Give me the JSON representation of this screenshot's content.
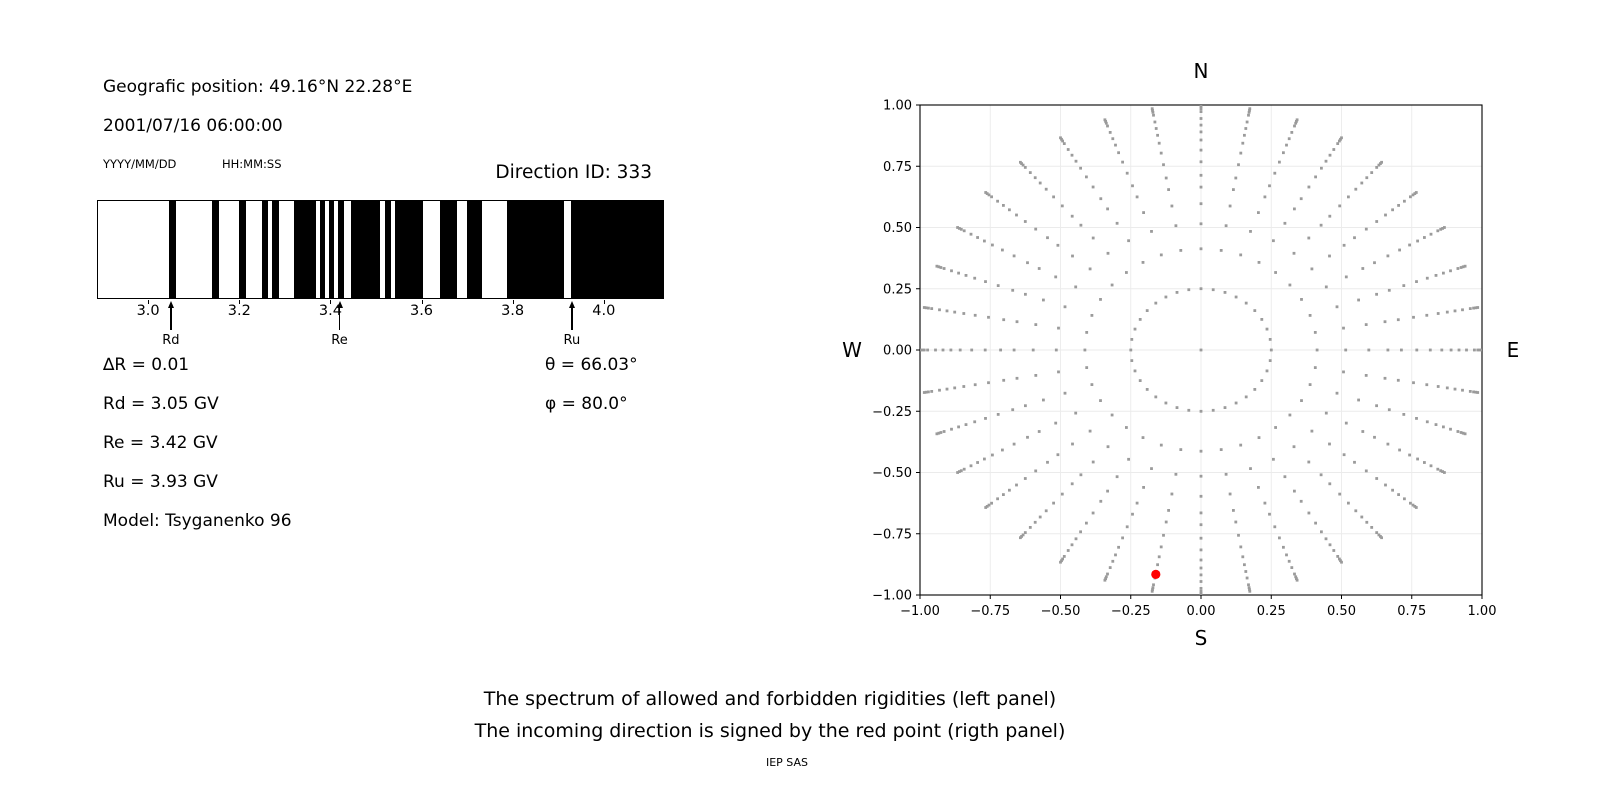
{
  "header": {
    "geographic_position": "Geografic position: 49.16°N 22.28°E",
    "datetime": "2001/07/16 06:00:00",
    "date_format_label": "YYYY/MM/DD",
    "time_format_label": "HH:MM:SS",
    "direction_id_label": "Direction ID: 333"
  },
  "parameters": {
    "delta_r": "∆R = 0.01",
    "rd": "Rd = 3.05 GV",
    "re": "Re = 3.42 GV",
    "ru": "Ru = 3.93 GV",
    "model": "Model: Tsyganenko 96",
    "theta": "θ = 66.03°",
    "phi": "φ = 80.0°"
  },
  "caption": {
    "line1": "The spectrum of allowed and forbidden rigidities (left panel)",
    "line2": "The incoming direction is signed by the red point (rigth panel)",
    "credit": "IEP SAS"
  },
  "chart_data": [
    {
      "type": "bar",
      "subtype": "rigidity-spectrum-bands",
      "description": "Allowed (black) and forbidden (white) rigidity bands, rigidity in GV",
      "xlim": [
        2.89,
        4.13
      ],
      "x_ticks": [
        3.0,
        3.2,
        3.4,
        3.6,
        3.8,
        4.0
      ],
      "x_tick_labels": [
        "3.0",
        "3.2",
        "3.4",
        "3.6",
        "3.8",
        "4.0"
      ],
      "allowed_bands_gv": [
        [
          3.046,
          3.062
        ],
        [
          3.14,
          3.156
        ],
        [
          3.2,
          3.214
        ],
        [
          3.25,
          3.264
        ],
        [
          3.271,
          3.287
        ],
        [
          3.32,
          3.368
        ],
        [
          3.377,
          3.388
        ],
        [
          3.396,
          3.409
        ],
        [
          3.417,
          3.429
        ],
        [
          3.446,
          3.51
        ],
        [
          3.52,
          3.533
        ],
        [
          3.542,
          3.603
        ],
        [
          3.64,
          3.679
        ],
        [
          3.699,
          3.734
        ],
        [
          3.788,
          3.913
        ],
        [
          3.929,
          4.13
        ]
      ],
      "markers": [
        {
          "label": "Rd",
          "value_gv": 3.05
        },
        {
          "label": "Re",
          "value_gv": 3.42
        },
        {
          "label": "Ru",
          "value_gv": 3.93
        }
      ],
      "band_color": "#000000",
      "background_color": "#ffffff"
    },
    {
      "type": "scatter",
      "subtype": "incoming-direction-map",
      "description": "Direction plot: 36 radial spokes of gray dots every 10 degrees, radii from inner ring 0.25 out to 1.0 with dots converging at the tips; red dot marks the incoming direction",
      "compass_labels": {
        "top": "N",
        "bottom": "S",
        "left": "W",
        "right": "E"
      },
      "xlim": [
        -1.0,
        1.0
      ],
      "ylim": [
        -1.0,
        1.0
      ],
      "ticks": [
        -1.0,
        -0.75,
        -0.5,
        -0.25,
        0.0,
        0.25,
        0.5,
        0.75,
        1.0
      ],
      "tick_labels": [
        "−1.00",
        "−0.75",
        "−0.50",
        "−0.25",
        "0.00",
        "0.25",
        "0.50",
        "0.75",
        "1.00"
      ],
      "grid": true,
      "spoke_azimuths_deg": [
        0,
        10,
        20,
        30,
        40,
        50,
        60,
        70,
        80,
        90,
        100,
        110,
        120,
        130,
        140,
        150,
        160,
        170,
        180,
        190,
        200,
        210,
        220,
        230,
        240,
        250,
        260,
        270,
        280,
        290,
        300,
        310,
        320,
        330,
        340,
        350
      ],
      "spoke_radii": [
        0.25,
        0.413,
        0.515,
        0.597,
        0.665,
        0.713,
        0.768,
        0.816,
        0.857,
        0.89,
        0.918,
        0.945,
        0.973,
        0.985,
        0.993,
        1.0
      ],
      "inner_ring_radius": 0.25,
      "center_point": {
        "x": 0.0,
        "y": 0.0
      },
      "red_point": {
        "x": -0.161,
        "y": -0.916,
        "azimuth_deg": 260,
        "radius": 0.93
      },
      "dot_color": "#9b9b9b",
      "red_point_color": "#ff0000",
      "grid_color": "#ebebeb",
      "axis_color": "#000000"
    }
  ]
}
